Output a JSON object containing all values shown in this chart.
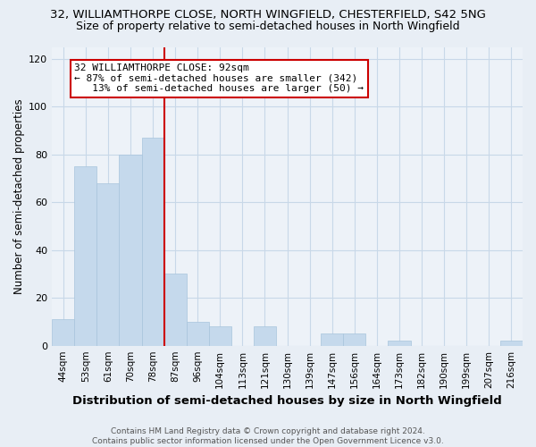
{
  "title1": "32, WILLIAMTHORPE CLOSE, NORTH WINGFIELD, CHESTERFIELD, S42 5NG",
  "title2": "Size of property relative to semi-detached houses in North Wingfield",
  "xlabel": "Distribution of semi-detached houses by size in North Wingfield",
  "ylabel": "Number of semi-detached properties",
  "categories": [
    "44sqm",
    "53sqm",
    "61sqm",
    "70sqm",
    "78sqm",
    "87sqm",
    "96sqm",
    "104sqm",
    "113sqm",
    "121sqm",
    "130sqm",
    "139sqm",
    "147sqm",
    "156sqm",
    "164sqm",
    "173sqm",
    "182sqm",
    "190sqm",
    "199sqm",
    "207sqm",
    "216sqm"
  ],
  "values": [
    11,
    75,
    68,
    80,
    87,
    30,
    10,
    8,
    0,
    8,
    0,
    0,
    5,
    5,
    0,
    2,
    0,
    0,
    0,
    0,
    2
  ],
  "bar_color": "#c5d9ec",
  "bar_edge_color": "#a8c4dc",
  "vline_color": "#cc0000",
  "vline_pos": 4.5,
  "annotation_line1": "32 WILLIAMTHORPE CLOSE: 92sqm",
  "annotation_line2": "← 87% of semi-detached houses are smaller (342)",
  "annotation_line3": "   13% of semi-detached houses are larger (50) →",
  "annotation_box_color": "#ffffff",
  "annotation_box_edge": "#cc0000",
  "footer": "Contains HM Land Registry data © Crown copyright and database right 2024.\nContains public sector information licensed under the Open Government Licence v3.0.",
  "ylim": [
    0,
    125
  ],
  "yticks": [
    0,
    20,
    40,
    60,
    80,
    100,
    120
  ],
  "bg_color": "#e8eef5",
  "plot_bg_color": "#edf2f8",
  "title1_fontsize": 9.5,
  "title2_fontsize": 9,
  "xlabel_fontsize": 9.5,
  "ylabel_fontsize": 8.5,
  "footer_fontsize": 6.5,
  "annotation_fontsize": 8,
  "tick_fontsize": 7.5,
  "ytick_fontsize": 8
}
